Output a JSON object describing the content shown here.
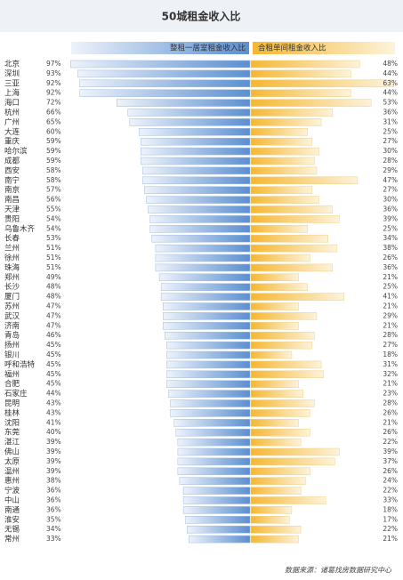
{
  "chart_data": {
    "type": "butterfly-bar",
    "title": "50城租金收入比",
    "source": "数据来源：诸葛找房数据研究中心",
    "categories": [
      "北京",
      "深圳",
      "三亚",
      "上海",
      "海口",
      "杭州",
      "广州",
      "大连",
      "重庆",
      "哈尔滨",
      "成都",
      "西安",
      "南宁",
      "南京",
      "南昌",
      "天津",
      "贵阳",
      "乌鲁木齐",
      "长春",
      "兰州",
      "徐州",
      "珠海",
      "郑州",
      "长沙",
      "厦门",
      "苏州",
      "武汉",
      "济南",
      "青岛",
      "扬州",
      "银川",
      "呼和浩特",
      "福州",
      "合肥",
      "石家庄",
      "昆明",
      "桂林",
      "沈阳",
      "东莞",
      "湛江",
      "佛山",
      "太原",
      "温州",
      "惠州",
      "宁波",
      "中山",
      "南通",
      "淮安",
      "无锡",
      "常州"
    ],
    "series": [
      {
        "name": "整租一居室租金收入比",
        "color": "#5b8fd0",
        "values": [
          97,
          93,
          92,
          92,
          72,
          66,
          65,
          60,
          59,
          59,
          59,
          58,
          58,
          57,
          56,
          55,
          54,
          54,
          53,
          51,
          51,
          51,
          49,
          48,
          48,
          47,
          47,
          47,
          46,
          45,
          45,
          45,
          45,
          45,
          44,
          43,
          43,
          41,
          40,
          39,
          39,
          39,
          39,
          38,
          36,
          36,
          36,
          35,
          34,
          33
        ],
        "value_labels": [
          "97%",
          "93%",
          "92%",
          "92%",
          "72%",
          "66%",
          "65%",
          "60%",
          "59%",
          "59%",
          "59%",
          "58%",
          "58%",
          "57%",
          "56%",
          "55%",
          "54%",
          "54%",
          "53%",
          "51%",
          "51%",
          "51%",
          "49%",
          "48%",
          "48%",
          "47%",
          "47%",
          "47%",
          "46%",
          "45%",
          "45%",
          "45%",
          "45%",
          "45%",
          "44%",
          "43%",
          "43%",
          "41%",
          "40%",
          "39%",
          "39%",
          "39%",
          "39%",
          "38%",
          "36%",
          "36%",
          "36%",
          "35%",
          "34%",
          "33%"
        ]
      },
      {
        "name": "合租单间租金收入比",
        "color": "#f5b731",
        "values": [
          48,
          44,
          63,
          44,
          53,
          36,
          31,
          25,
          27,
          30,
          28,
          29,
          47,
          27,
          30,
          36,
          39,
          25,
          34,
          38,
          26,
          36,
          21,
          25,
          41,
          21,
          29,
          21,
          28,
          27,
          18,
          31,
          32,
          21,
          23,
          28,
          26,
          21,
          26,
          22,
          39,
          37,
          26,
          24,
          22,
          33,
          18,
          17,
          22,
          21
        ],
        "value_labels": [
          "48%",
          "44%",
          "63%",
          "44%",
          "53%",
          "36%",
          "31%",
          "25%",
          "27%",
          "30%",
          "28%",
          "29%",
          "47%",
          "27%",
          "30%",
          "36%",
          "39%",
          "25%",
          "34%",
          "38%",
          "26%",
          "36%",
          "21%",
          "25%",
          "41%",
          "21%",
          "29%",
          "21%",
          "28%",
          "27%",
          "18%",
          "31%",
          "32%",
          "21%",
          "23%",
          "28%",
          "26%",
          "21%",
          "26%",
          "22%",
          "39%",
          "37%",
          "26%",
          "24%",
          "22%",
          "33%",
          "18%",
          "17%",
          "22%",
          "21%"
        ]
      }
    ]
  }
}
